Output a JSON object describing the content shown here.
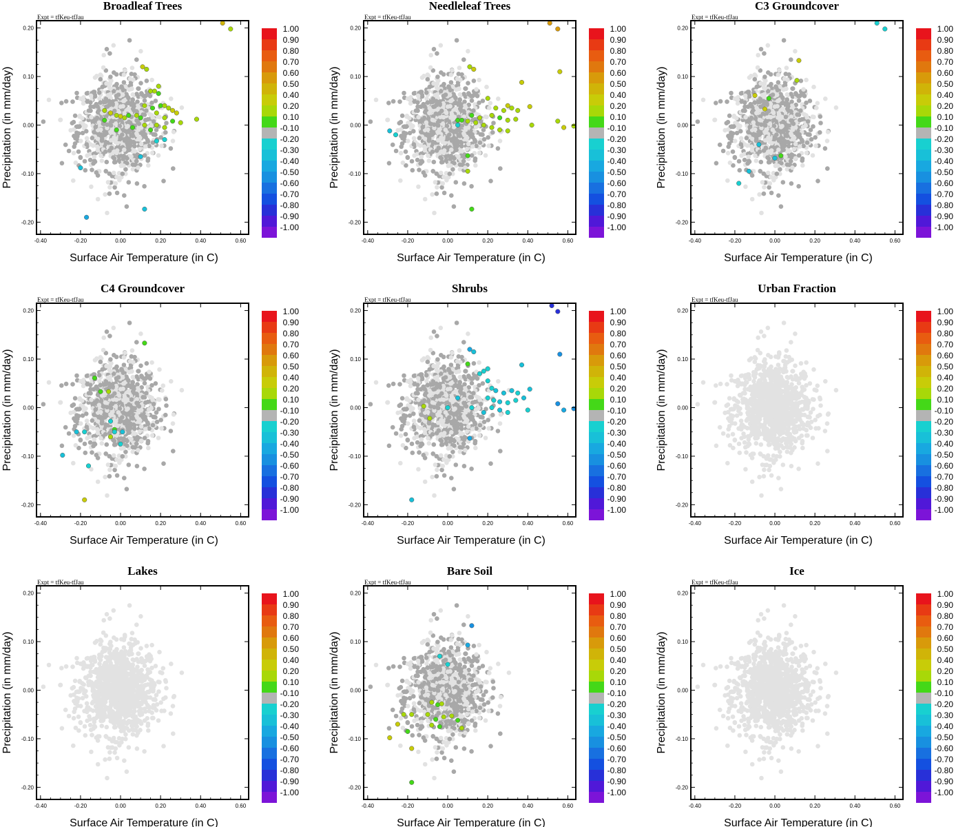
{
  "figure": {
    "expt_label": "Expt = tfKeu-tfJau",
    "xlabel": "Surface Air Temperature (in C)",
    "ylabel": "Precipitation (in mm/day)",
    "xticks": [
      "-0.40",
      "-0.20",
      "0.00",
      "0.20",
      "0.40",
      "0.60"
    ],
    "yticks": [
      "0.20",
      "0.10",
      "0.00",
      "-0.10",
      "-0.20"
    ],
    "colorbar": {
      "labels": [
        "1.00",
        "0.90",
        "0.80",
        "0.70",
        "0.60",
        "0.50",
        "0.40",
        "0.20",
        "0.10",
        "-0.10",
        "-0.20",
        "-0.30",
        "-0.40",
        "-0.50",
        "-0.60",
        "-0.70",
        "-0.80",
        "-0.90",
        "-1.00"
      ],
      "colors": [
        "#e8141c",
        "#e83a14",
        "#e85c10",
        "#e0780e",
        "#d89a0a",
        "#d0b408",
        "#c8cc08",
        "#a8d808",
        "#44d818",
        "#b4b4b4",
        "#18d0d0",
        "#18c0d8",
        "#18a8e0",
        "#1890e0",
        "#1870e0",
        "#1450e0",
        "#2830d8",
        "#5018d8",
        "#7c14d8"
      ]
    }
  },
  "chart_data": [
    {
      "type": "scatter",
      "title": "Broadleaf Trees",
      "xlim": [
        -0.42,
        0.64
      ],
      "ylim": [
        -0.225,
        0.215
      ],
      "xlabel": "Surface Air Temperature (in C)",
      "ylabel": "Precipitation (in mm/day)",
      "highlighted": [
        [
          0.51,
          0.21,
          0.5
        ],
        [
          0.55,
          0.198,
          0.3
        ],
        [
          0.11,
          0.12,
          0.4
        ],
        [
          0.13,
          0.115,
          0.3
        ],
        [
          0.19,
          0.08,
          0.2
        ],
        [
          0.15,
          0.07,
          0.3
        ],
        [
          0.17,
          0.07,
          0.3
        ],
        [
          0.19,
          0.065,
          0.1
        ],
        [
          -0.08,
          0.03,
          0.3
        ],
        [
          -0.05,
          0.025,
          0.4
        ],
        [
          -0.02,
          0.02,
          0.2
        ],
        [
          0.0,
          0.018,
          0.4
        ],
        [
          0.02,
          0.015,
          0.3
        ],
        [
          0.04,
          0.02,
          0.1
        ],
        [
          0.08,
          0.02,
          0.2
        ],
        [
          0.1,
          0.015,
          0.1
        ],
        [
          0.12,
          0.04,
          0.2
        ],
        [
          0.16,
          0.035,
          0.1
        ],
        [
          0.2,
          0.04,
          0.1
        ],
        [
          0.22,
          0.04,
          0.2
        ],
        [
          0.24,
          0.035,
          0.3
        ],
        [
          0.26,
          0.03,
          0.4
        ],
        [
          0.28,
          0.025,
          0.4
        ],
        [
          0.18,
          0.025,
          0.3
        ],
        [
          0.22,
          0.015,
          0.2
        ],
        [
          0.26,
          0.008,
          0.1
        ],
        [
          0.3,
          0.005,
          0.3
        ],
        [
          0.38,
          0.012,
          0.3
        ],
        [
          -0.08,
          0.01,
          0.1
        ],
        [
          -0.02,
          -0.01,
          0.1
        ],
        [
          0.06,
          -0.005,
          0.1
        ],
        [
          0.15,
          -0.01,
          0.1
        ],
        [
          0.18,
          0.0,
          0.2
        ],
        [
          0.22,
          -0.005,
          0.3
        ],
        [
          0.12,
          0.0,
          0.3
        ],
        [
          0.22,
          -0.03,
          -0.2
        ],
        [
          0.1,
          -0.065,
          -0.3
        ],
        [
          -0.2,
          -0.088,
          -0.3
        ],
        [
          -0.17,
          -0.19,
          -0.4
        ],
        [
          0.12,
          -0.173,
          -0.3
        ],
        [
          0.18,
          -0.033,
          -0.2
        ]
      ]
    },
    {
      "type": "scatter",
      "title": "Needleleaf Trees",
      "xlim": [
        -0.42,
        0.64
      ],
      "ylim": [
        -0.225,
        0.215
      ],
      "xlabel": "Surface Air Temperature (in C)",
      "ylabel": "Precipitation (in mm/day)",
      "highlighted": [
        [
          0.51,
          0.21,
          0.6
        ],
        [
          0.55,
          0.198,
          0.6
        ],
        [
          0.56,
          0.11,
          0.4
        ],
        [
          0.11,
          0.12,
          0.3
        ],
        [
          0.13,
          0.115,
          0.4
        ],
        [
          0.37,
          0.088,
          0.4
        ],
        [
          0.2,
          0.055,
          0.2
        ],
        [
          0.3,
          0.04,
          0.4
        ],
        [
          0.32,
          0.035,
          0.3
        ],
        [
          0.35,
          0.03,
          0.2
        ],
        [
          0.41,
          0.038,
          0.4
        ],
        [
          0.24,
          0.035,
          0.3
        ],
        [
          0.28,
          0.03,
          0.3
        ],
        [
          0.12,
          0.02,
          0.1
        ],
        [
          0.16,
          0.015,
          0.2
        ],
        [
          0.22,
          0.02,
          0.3
        ],
        [
          0.26,
          0.015,
          0.1
        ],
        [
          0.3,
          0.01,
          0.2
        ],
        [
          0.34,
          0.012,
          0.3
        ],
        [
          0.05,
          0.01,
          0.1
        ],
        [
          0.07,
          0.01,
          0.1
        ],
        [
          0.1,
          0.008,
          0.2
        ],
        [
          0.14,
          0.005,
          0.2
        ],
        [
          0.18,
          0.0,
          0.3
        ],
        [
          0.22,
          -0.005,
          0.2
        ],
        [
          0.26,
          -0.01,
          0.3
        ],
        [
          0.3,
          -0.012,
          0.3
        ],
        [
          0.42,
          0.0,
          0.3
        ],
        [
          0.55,
          0.008,
          0.3
        ],
        [
          0.58,
          -0.005,
          0.4
        ],
        [
          0.63,
          -0.002,
          0.2
        ],
        [
          0.1,
          -0.063,
          0.1
        ],
        [
          0.1,
          -0.095,
          0.3
        ],
        [
          0.12,
          -0.173,
          0.1
        ],
        [
          -0.29,
          -0.012,
          -0.3
        ],
        [
          -0.26,
          -0.02,
          -0.2
        ],
        [
          0.05,
          0.0,
          -0.2
        ]
      ]
    },
    {
      "type": "scatter",
      "title": "C3 Groundcover",
      "xlim": [
        -0.42,
        0.64
      ],
      "ylim": [
        -0.225,
        0.215
      ],
      "xlabel": "Surface Air Temperature (in C)",
      "ylabel": "Precipitation (in mm/day)",
      "highlighted": [
        [
          0.51,
          0.21,
          -0.2
        ],
        [
          0.55,
          0.198,
          -0.2
        ],
        [
          0.12,
          0.133,
          0.4
        ],
        [
          0.11,
          0.092,
          0.3
        ],
        [
          -0.1,
          0.061,
          0.4
        ],
        [
          -0.03,
          0.055,
          0.1
        ],
        [
          -0.05,
          0.033,
          0.4
        ],
        [
          0.03,
          -0.063,
          0.1
        ],
        [
          -0.13,
          -0.095,
          -0.3
        ],
        [
          -0.18,
          -0.12,
          -0.2
        ],
        [
          0.0,
          -0.068,
          -0.3
        ],
        [
          -0.08,
          -0.04,
          -0.3
        ]
      ]
    },
    {
      "type": "scatter",
      "title": "C4 Groundcover",
      "xlim": [
        -0.42,
        0.64
      ],
      "ylim": [
        -0.225,
        0.215
      ],
      "xlabel": "Surface Air Temperature (in C)",
      "ylabel": "Precipitation (in mm/day)",
      "highlighted": [
        [
          0.12,
          0.133,
          0.1
        ],
        [
          -0.13,
          0.061,
          0.1
        ],
        [
          -0.1,
          0.033,
          0.1
        ],
        [
          -0.06,
          0.033,
          0.3
        ],
        [
          -0.03,
          -0.045,
          0.1
        ],
        [
          -0.05,
          -0.06,
          0.3
        ],
        [
          -0.03,
          -0.05,
          -0.2
        ],
        [
          0.01,
          -0.05,
          -0.3
        ],
        [
          -0.05,
          -0.028,
          -0.2
        ],
        [
          -0.22,
          -0.05,
          -0.3
        ],
        [
          -0.18,
          -0.05,
          -0.2
        ],
        [
          -0.29,
          -0.098,
          -0.3
        ],
        [
          -0.16,
          -0.12,
          -0.2
        ],
        [
          0.0,
          -0.075,
          -0.2
        ],
        [
          -0.18,
          -0.19,
          0.4
        ]
      ]
    },
    {
      "type": "scatter",
      "title": "Shrubs",
      "xlim": [
        -0.42,
        0.64
      ],
      "ylim": [
        -0.225,
        0.215
      ],
      "xlabel": "Surface Air Temperature (in C)",
      "ylabel": "Precipitation (in mm/day)",
      "highlighted": [
        [
          0.52,
          0.21,
          -0.8
        ],
        [
          0.55,
          0.198,
          -0.8
        ],
        [
          0.56,
          0.11,
          -0.5
        ],
        [
          0.11,
          0.12,
          -0.4
        ],
        [
          0.13,
          0.115,
          -0.3
        ],
        [
          0.37,
          0.088,
          -0.3
        ],
        [
          0.2,
          0.08,
          -0.2
        ],
        [
          0.18,
          0.075,
          -0.2
        ],
        [
          0.16,
          0.07,
          -0.2
        ],
        [
          0.2,
          0.055,
          -0.2
        ],
        [
          0.22,
          0.04,
          -0.2
        ],
        [
          0.24,
          0.035,
          -0.3
        ],
        [
          0.28,
          0.03,
          -0.3
        ],
        [
          0.32,
          0.035,
          -0.3
        ],
        [
          0.35,
          0.03,
          -0.2
        ],
        [
          0.41,
          0.038,
          -0.3
        ],
        [
          0.2,
          0.02,
          -0.2
        ],
        [
          0.23,
          0.015,
          -0.2
        ],
        [
          0.26,
          0.012,
          -0.3
        ],
        [
          0.3,
          0.01,
          -0.2
        ],
        [
          0.34,
          0.015,
          -0.2
        ],
        [
          0.38,
          0.02,
          -0.3
        ],
        [
          0.22,
          0.0,
          -0.2
        ],
        [
          0.26,
          -0.005,
          -0.3
        ],
        [
          0.3,
          -0.01,
          -0.2
        ],
        [
          0.4,
          -0.005,
          -0.2
        ],
        [
          0.55,
          0.008,
          -0.5
        ],
        [
          0.58,
          -0.005,
          -0.4
        ],
        [
          0.63,
          -0.002,
          -0.5
        ],
        [
          0.12,
          0.0,
          -0.2
        ],
        [
          0.18,
          -0.01,
          -0.3
        ],
        [
          0.1,
          0.09,
          0.1
        ],
        [
          -0.12,
          0.003,
          0.2
        ],
        [
          -0.09,
          -0.022,
          0.3
        ],
        [
          0.11,
          -0.063,
          -0.4
        ],
        [
          -0.18,
          -0.19,
          -0.3
        ],
        [
          0.0,
          0.0,
          -0.2
        ],
        [
          0.05,
          0.02,
          -0.3
        ]
      ]
    },
    {
      "type": "scatter",
      "title": "Urban Fraction",
      "xlim": [
        -0.42,
        0.64
      ],
      "ylim": [
        -0.225,
        0.215
      ],
      "xlabel": "Surface Air Temperature (in C)",
      "ylabel": "Precipitation (in mm/day)",
      "highlighted": []
    },
    {
      "type": "scatter",
      "title": "Lakes",
      "xlim": [
        -0.42,
        0.64
      ],
      "ylim": [
        -0.225,
        0.215
      ],
      "xlabel": "Surface Air Temperature (in C)",
      "ylabel": "Precipitation (in mm/day)",
      "highlighted": []
    },
    {
      "type": "scatter",
      "title": "Bare Soil",
      "xlim": [
        -0.42,
        0.64
      ],
      "ylim": [
        -0.225,
        0.215
      ],
      "xlabel": "Surface Air Temperature (in C)",
      "ylabel": "Precipitation (in mm/day)",
      "highlighted": [
        [
          0.12,
          0.133,
          -0.5
        ],
        [
          0.1,
          0.093,
          -0.4
        ],
        [
          0.0,
          0.053,
          -0.2
        ],
        [
          -0.04,
          0.07,
          -0.2
        ],
        [
          -0.22,
          -0.05,
          0.2
        ],
        [
          -0.18,
          -0.05,
          0.3
        ],
        [
          -0.25,
          -0.07,
          0.4
        ],
        [
          -0.29,
          -0.098,
          0.4
        ],
        [
          -0.18,
          -0.12,
          0.4
        ],
        [
          -0.2,
          -0.085,
          0.1
        ],
        [
          -0.08,
          -0.025,
          0.2
        ],
        [
          -0.05,
          -0.03,
          0.1
        ],
        [
          -0.03,
          -0.028,
          0.2
        ],
        [
          -0.1,
          -0.05,
          0.2
        ],
        [
          -0.06,
          -0.06,
          0.1
        ],
        [
          -0.02,
          -0.055,
          0.2
        ],
        [
          0.02,
          -0.053,
          0.3
        ],
        [
          -0.04,
          -0.075,
          0.1
        ],
        [
          -0.08,
          -0.072,
          0.2
        ],
        [
          0.05,
          -0.062,
          0.1
        ],
        [
          0.07,
          -0.078,
          0.2
        ],
        [
          -0.18,
          -0.19,
          0.1
        ]
      ]
    },
    {
      "type": "scatter",
      "title": "Ice",
      "xlim": [
        -0.42,
        0.64
      ],
      "ylim": [
        -0.225,
        0.215
      ],
      "xlabel": "Surface Air Temperature (in C)",
      "ylabel": "Precipitation (in mm/day)",
      "highlighted": []
    }
  ]
}
